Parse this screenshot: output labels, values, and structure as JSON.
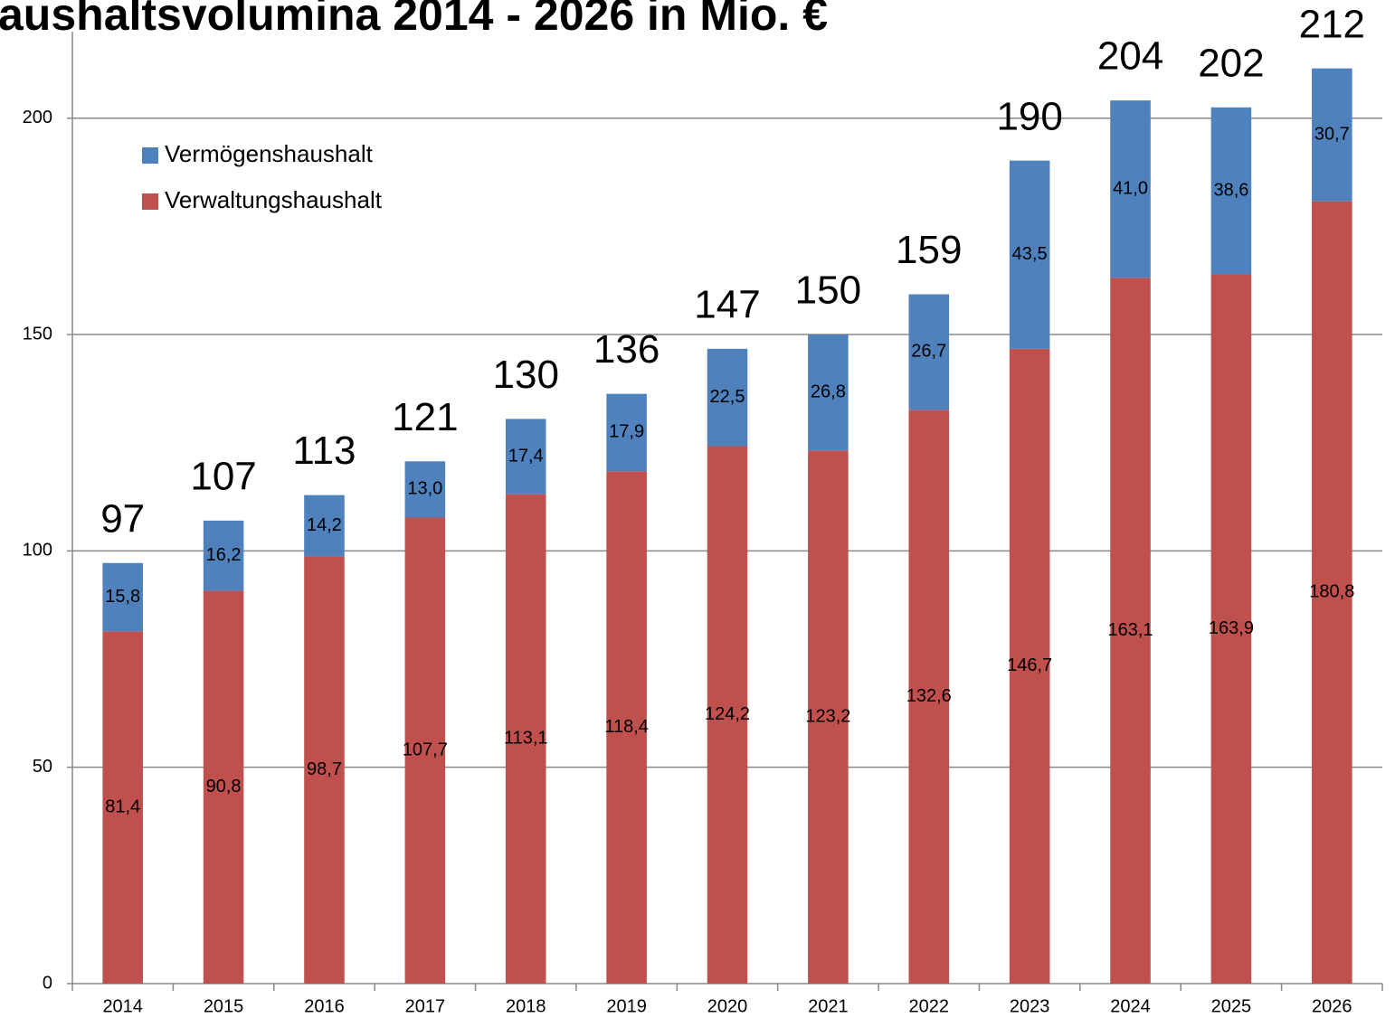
{
  "chart_data": {
    "type": "bar",
    "stacked": true,
    "title": "aushaltsvolumina 2014 - 2026 in Mio. €",
    "categories": [
      "2014",
      "2015",
      "2016",
      "2017",
      "2018",
      "2019",
      "2020",
      "2021",
      "2022",
      "2023",
      "2024",
      "2025",
      "2026"
    ],
    "series": [
      {
        "name": "Verwaltungshaushalt",
        "color": "#c0504d",
        "values": [
          81.4,
          90.8,
          98.7,
          107.7,
          113.1,
          118.4,
          124.2,
          123.2,
          132.6,
          146.7,
          163.1,
          163.9,
          180.8
        ],
        "value_labels": [
          "81,4",
          "90,8",
          "98,7",
          "107,7",
          "113,1",
          "118,4",
          "124,2",
          "123,2",
          "132,6",
          "146,7",
          "163,1",
          "163,9",
          "180,8"
        ]
      },
      {
        "name": "Vermögenshaushalt",
        "color": "#4f81bd",
        "values": [
          15.8,
          16.2,
          14.2,
          13.0,
          17.4,
          17.9,
          22.5,
          26.8,
          26.7,
          43.5,
          41.0,
          38.6,
          30.7
        ],
        "value_labels": [
          "15,8",
          "16,2",
          "14,2",
          "13,0",
          "17,4",
          "17,9",
          "22,5",
          "26,8",
          "26,7",
          "43,5",
          "41,0",
          "38,6",
          "30,7"
        ]
      }
    ],
    "totals": [
      97,
      107,
      113,
      121,
      130,
      136,
      147,
      150,
      159,
      190,
      204,
      202,
      212
    ],
    "ylim": [
      0,
      220
    ],
    "yticks": [
      0,
      50,
      100,
      150,
      200
    ],
    "grid": true,
    "legend": "upper left"
  }
}
